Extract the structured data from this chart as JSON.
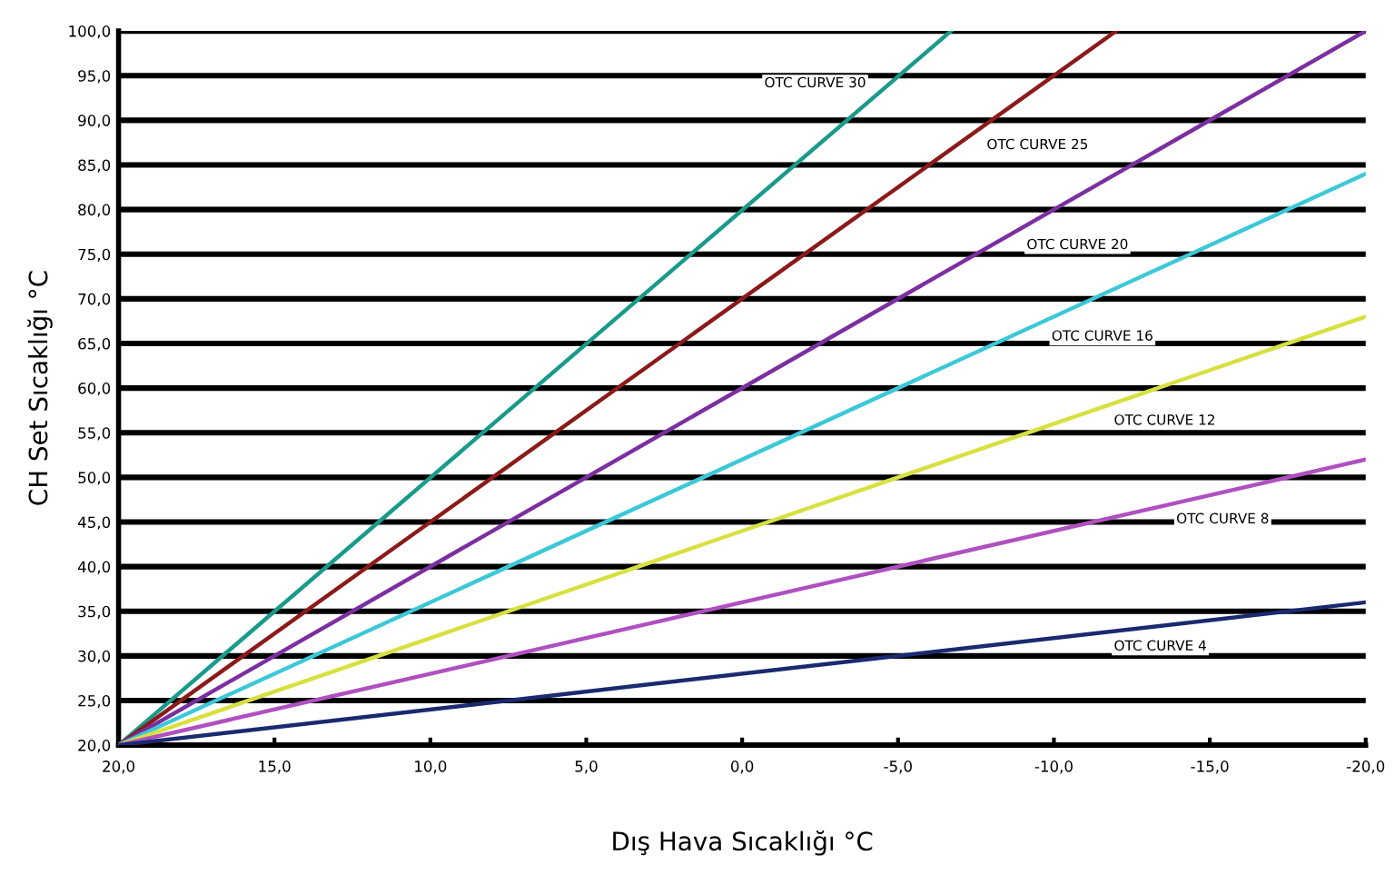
{
  "chart_data": {
    "type": "line",
    "xlabel": "Dış Hava Sıcaklığı °C",
    "ylabel": "CH Set Sıcaklığı °C",
    "xlim": [
      20,
      -20
    ],
    "ylim": [
      20,
      100
    ],
    "xticks": [
      {
        "value": 20,
        "label": "20,0"
      },
      {
        "value": 15,
        "label": "15,0"
      },
      {
        "value": 10,
        "label": "10,0"
      },
      {
        "value": 5,
        "label": "5,0"
      },
      {
        "value": 0,
        "label": "0,0"
      },
      {
        "value": -5,
        "label": "-5,0"
      },
      {
        "value": -10,
        "label": "-10,0"
      },
      {
        "value": -15,
        "label": "-15,0"
      },
      {
        "value": -20,
        "label": "-20,0"
      }
    ],
    "yticks": [
      {
        "value": 20,
        "label": "20,0"
      },
      {
        "value": 25,
        "label": "25,0"
      },
      {
        "value": 30,
        "label": "30,0"
      },
      {
        "value": 35,
        "label": "35,0"
      },
      {
        "value": 40,
        "label": "40,0"
      },
      {
        "value": 45,
        "label": "45,0"
      },
      {
        "value": 50,
        "label": "50,0"
      },
      {
        "value": 55,
        "label": "55,0"
      },
      {
        "value": 60,
        "label": "60,0"
      },
      {
        "value": 65,
        "label": "65,0"
      },
      {
        "value": 70,
        "label": "70,0"
      },
      {
        "value": 75,
        "label": "75,0"
      },
      {
        "value": 80,
        "label": "80,0"
      },
      {
        "value": 85,
        "label": "85,0"
      },
      {
        "value": 90,
        "label": "90,0"
      },
      {
        "value": 95,
        "label": "95,0"
      },
      {
        "value": 100,
        "label": "100,0"
      }
    ],
    "grid": "y",
    "marker": "none",
    "line_style": "solid",
    "series": [
      {
        "name": "OTC CURVE 30",
        "color": "#1a9a8a",
        "x": [
          20,
          -6.7
        ],
        "values": [
          20,
          100
        ]
      },
      {
        "name": "OTC CURVE 25",
        "color": "#8b1a1a",
        "x": [
          20,
          -12
        ],
        "values": [
          20,
          100
        ]
      },
      {
        "name": "OTC CURVE 20",
        "color": "#7b2fa0",
        "x": [
          20,
          -20
        ],
        "values": [
          20,
          100
        ]
      },
      {
        "name": "OTC CURVE 16",
        "color": "#3cc8d8",
        "x": [
          20,
          -20
        ],
        "values": [
          20,
          84
        ]
      },
      {
        "name": "OTC CURVE 12",
        "color": "#d8e040",
        "x": [
          20,
          -20
        ],
        "values": [
          20,
          68
        ]
      },
      {
        "name": "OTC CURVE 8",
        "color": "#b050c0",
        "x": [
          20,
          -20
        ],
        "values": [
          20,
          52
        ]
      },
      {
        "name": "OTC CURVE 4",
        "color": "#1a2a70",
        "x": [
          20,
          -20
        ],
        "values": [
          20,
          36
        ]
      }
    ]
  }
}
